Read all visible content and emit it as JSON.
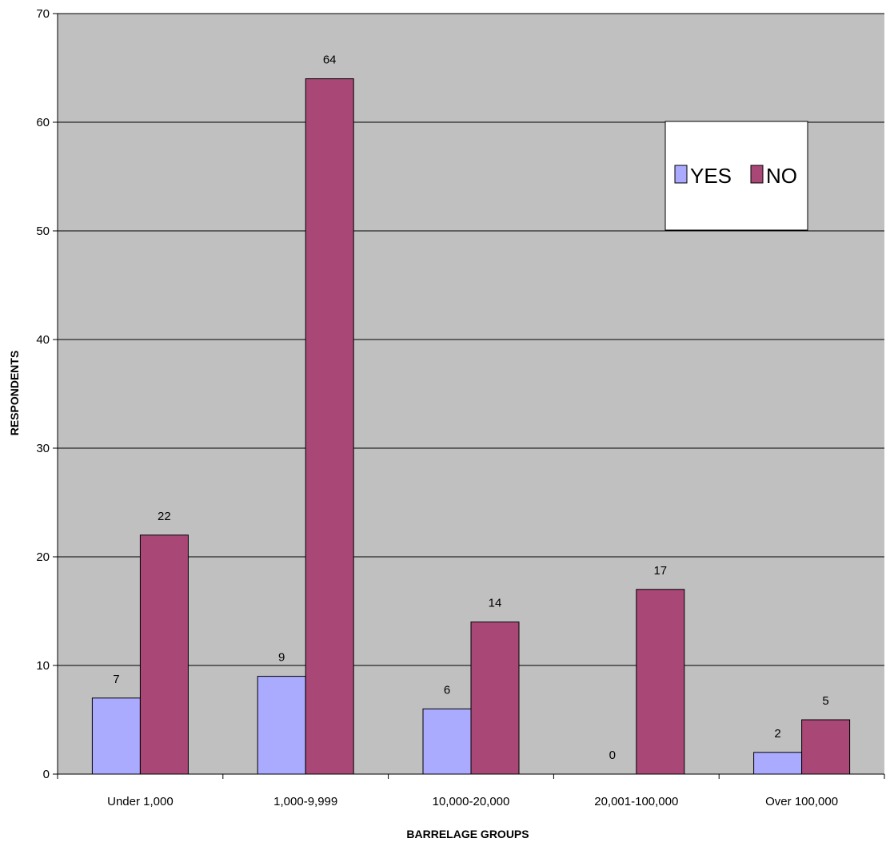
{
  "chart_data": {
    "type": "bar",
    "categories": [
      "Under 1,000",
      "1,000-9,999",
      "10,000-20,000",
      "20,001-100,000",
      "Over 100,000"
    ],
    "series": [
      {
        "name": "YES",
        "values": [
          7,
          9,
          6,
          0,
          2
        ],
        "color": "#aaaaff"
      },
      {
        "name": "NO",
        "values": [
          22,
          64,
          14,
          17,
          5
        ],
        "color": "#a94776"
      }
    ],
    "data_labels": {
      "YES": [
        "7",
        "9",
        "6",
        "0",
        "2"
      ],
      "NO": [
        "22",
        "64",
        "14",
        "17",
        "5"
      ]
    },
    "title": "",
    "xlabel": "BARRELAGE GROUPS",
    "ylabel": "RESPONDENTS",
    "ylim": [
      0,
      70
    ],
    "yticks": [
      0,
      10,
      20,
      30,
      40,
      50,
      60,
      70
    ],
    "ytick_labels": [
      "0",
      "10",
      "20",
      "30",
      "40",
      "50",
      "60",
      "70"
    ],
    "grid": true,
    "legend_position": "top-right",
    "plot_background": "#c0c0c0"
  }
}
